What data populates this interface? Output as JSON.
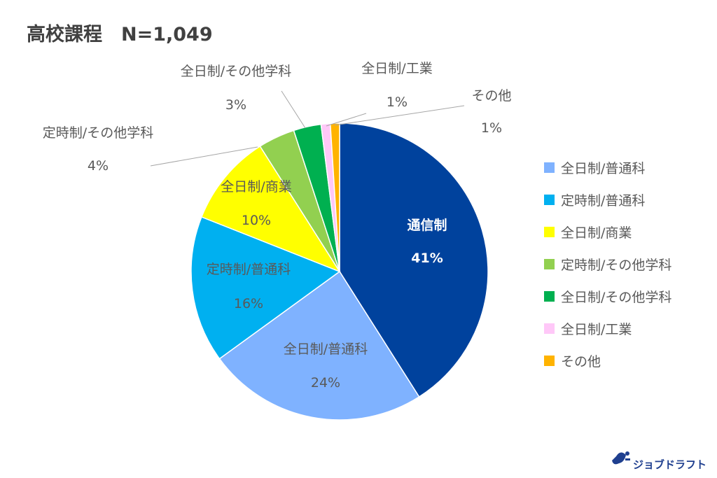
{
  "chart_data": {
    "type": "pie",
    "title": "高校課程　N=1,049",
    "slices": [
      {
        "key": "tsushin",
        "name": "通信制",
        "value": 41,
        "label": "41%",
        "color": "#00429D",
        "legend": false
      },
      {
        "key": "zen_futsu",
        "name": "全日制/普通科",
        "value": 24,
        "label": "24%",
        "color": "#7FB2FF",
        "legend": true
      },
      {
        "key": "tei_futsu",
        "name": "定時制/普通科",
        "value": 16,
        "label": "16%",
        "color": "#00B0F0",
        "legend": true
      },
      {
        "key": "zen_shogyo",
        "name": "全日制/商業",
        "value": 10,
        "label": "10%",
        "color": "#FFFF00",
        "legend": true
      },
      {
        "key": "tei_sonota",
        "name": "定時制/その他学科",
        "value": 4,
        "label": "4%",
        "color": "#92D050",
        "legend": true
      },
      {
        "key": "zen_sonota",
        "name": "全日制/その他学科",
        "value": 3,
        "label": "3%",
        "color": "#00B050",
        "legend": true
      },
      {
        "key": "zen_kogyo",
        "name": "全日制/工業",
        "value": 1,
        "label": "1%",
        "color": "#FFC8F8",
        "legend": true
      },
      {
        "key": "sonota",
        "name": "その他",
        "value": 1,
        "label": "1%",
        "color": "#FFB300",
        "legend": true
      }
    ],
    "legend_position": "right"
  },
  "branding": {
    "logo_text": "ジョブドラフト"
  }
}
